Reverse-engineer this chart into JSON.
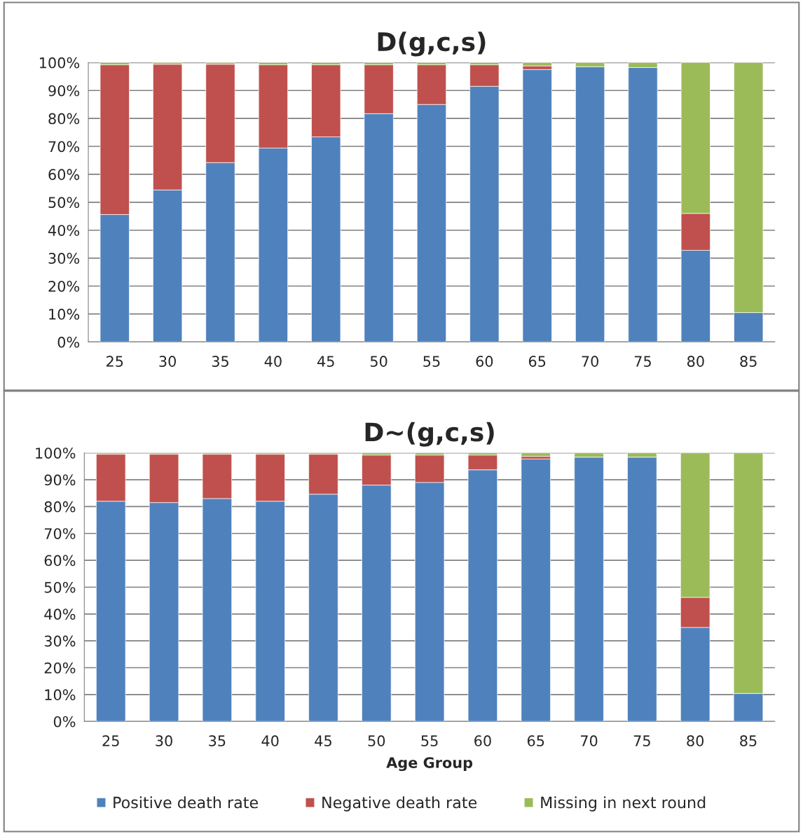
{
  "chart_data": [
    {
      "type": "bar",
      "title": "D(g,c,s)",
      "stacked": true,
      "legend": "bottom",
      "categories": [
        "25",
        "30",
        "35",
        "40",
        "45",
        "50",
        "55",
        "60",
        "65",
        "70",
        "75",
        "80",
        "85"
      ],
      "series": [
        {
          "name": "Positive death rate",
          "color": "#4f81bd",
          "values": [
            45.6,
            54.4,
            64.2,
            69.4,
            73.4,
            81.7,
            85.0,
            91.5,
            97.5,
            98.5,
            98.2,
            32.8,
            10.5
          ]
        },
        {
          "name": "Negative death rate",
          "color": "#c0504d",
          "values": [
            53.6,
            45.0,
            35.2,
            29.8,
            25.8,
            17.5,
            14.2,
            7.7,
            1.3,
            null,
            null,
            13.2,
            null
          ]
        },
        {
          "name": "Missing in next round",
          "color": "#9bbb59",
          "values": [
            0.8,
            0.6,
            0.6,
            0.8,
            0.8,
            0.8,
            0.8,
            0.8,
            1.2,
            1.5,
            1.8,
            54.0,
            89.5
          ]
        }
      ],
      "ylim": [
        0,
        100
      ],
      "yticks": [
        {
          "value": 0,
          "label": "0%"
        },
        {
          "value": 10,
          "label": "10%"
        },
        {
          "value": 20,
          "label": "20%"
        },
        {
          "value": 30,
          "label": "30%"
        },
        {
          "value": 40,
          "label": "40%"
        },
        {
          "value": 50,
          "label": "50%"
        },
        {
          "value": 60,
          "label": "60%"
        },
        {
          "value": 70,
          "label": "70%"
        },
        {
          "value": 80,
          "label": "80%"
        },
        {
          "value": 90,
          "label": "90%"
        },
        {
          "value": 100,
          "label": "100%"
        }
      ],
      "grid": "y"
    },
    {
      "type": "bar",
      "title": "D~(g,c,s)",
      "xlabel": "Age Group",
      "stacked": true,
      "categories": [
        "25",
        "30",
        "35",
        "40",
        "45",
        "50",
        "55",
        "60",
        "65",
        "70",
        "75",
        "80",
        "85"
      ],
      "series": [
        {
          "color": "#4f81bd",
          "values": [
            82.0,
            81.5,
            83.0,
            82.0,
            84.6,
            88.0,
            89.0,
            93.7,
            97.7,
            98.4,
            98.4,
            35.0,
            10.4
          ]
        },
        {
          "color": "#c0504d",
          "values": [
            17.5,
            18.0,
            16.5,
            17.5,
            14.9,
            11.2,
            10.2,
            5.5,
            1.0,
            null,
            null,
            11.2,
            null
          ]
        },
        {
          "color": "#9bbb59",
          "values": [
            0.5,
            0.5,
            0.5,
            0.5,
            0.5,
            0.8,
            0.8,
            0.8,
            1.3,
            1.6,
            1.6,
            53.8,
            89.6
          ]
        }
      ],
      "ylim": [
        0,
        100
      ],
      "yticks": [
        {
          "value": 0,
          "label": "0%"
        },
        {
          "value": 10,
          "label": "10%"
        },
        {
          "value": 20,
          "label": "20%"
        },
        {
          "value": 30,
          "label": "30%"
        },
        {
          "value": 40,
          "label": "40%"
        },
        {
          "value": 50,
          "label": "50%"
        },
        {
          "value": 60,
          "label": "60%"
        },
        {
          "value": 70,
          "label": "70%"
        },
        {
          "value": 80,
          "label": "80%"
        },
        {
          "value": 90,
          "label": "90%"
        },
        {
          "value": 100,
          "label": "100%"
        }
      ],
      "grid": "y"
    }
  ]
}
